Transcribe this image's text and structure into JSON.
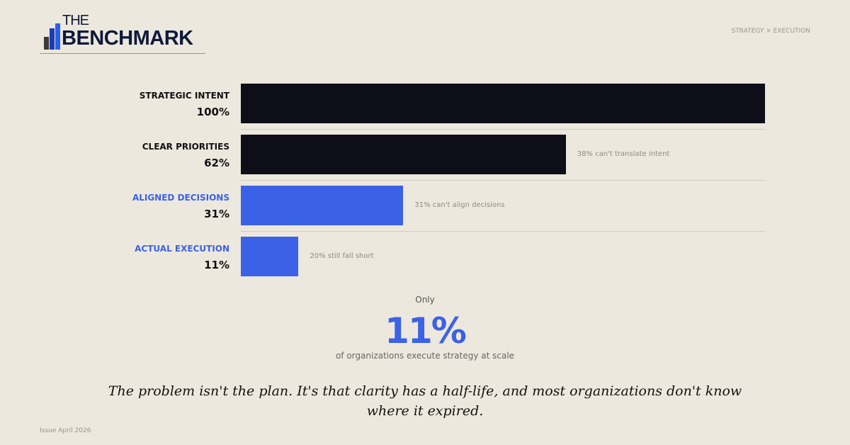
{
  "brand": {
    "logo_text": "THE BENCHMARK",
    "logo_top": "THE",
    "logo_bottom": "BENCHMARK"
  },
  "header": {
    "tagline": "STRATEGY × EXECUTION"
  },
  "colors": {
    "dark": "#0d0e18",
    "accent": "#3b62e6",
    "background": "#ede8de"
  },
  "chart_data": {
    "type": "bar",
    "orientation": "horizontal",
    "categories": [
      "STRATEGIC INTENT",
      "CLEAR PRIORITIES",
      "ALIGNED DECISIONS",
      "ACTUAL EXECUTION"
    ],
    "values": [
      100,
      62,
      31,
      11
    ],
    "value_labels": [
      "100%",
      "62%",
      "31%",
      "11%"
    ],
    "annotations": [
      "",
      "38% can't translate intent",
      "31% can't align decisions",
      "20% still fall short"
    ],
    "bar_colors": [
      "#0d0e18",
      "#0d0e18",
      "#3b62e6",
      "#3b62e6"
    ],
    "label_colors": [
      "#111111",
      "#111111",
      "#3b62e6",
      "#3b62e6"
    ],
    "xlim": [
      0,
      100
    ],
    "grid": false
  },
  "callout": {
    "prefix": "Only",
    "value": "11%",
    "caption": "of organizations execute strategy at scale"
  },
  "quote": "The problem isn't the plan. It's that clarity has a half-life, and most organizations don't know where it expired.",
  "footer": {
    "issue": "Issue  April 2026"
  }
}
